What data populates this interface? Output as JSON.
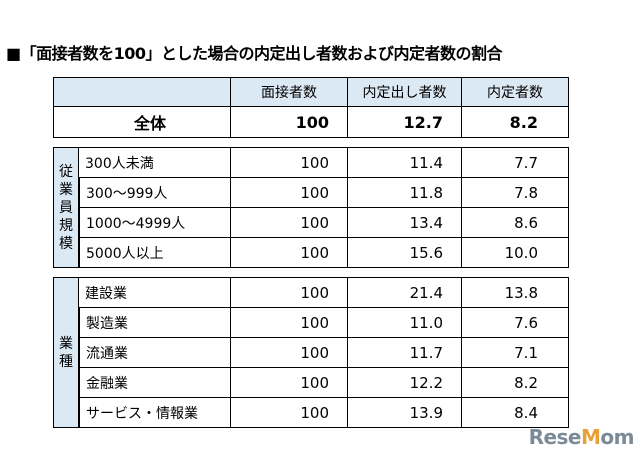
{
  "title": "■「面接者数を100」とした場合の内定出し者数および内定者数の割合",
  "headers": [
    "面接者数",
    "内定出し者数",
    "内定者数"
  ],
  "total": {
    "label": "全体",
    "values": [
      "100",
      "12.7",
      "8.2"
    ]
  },
  "groups": [
    {
      "label_chars": [
        "従",
        "業",
        "員",
        "規",
        "模"
      ],
      "rows": [
        {
          "label": "300人未満",
          "values": [
            "100",
            "11.4",
            "7.7"
          ]
        },
        {
          "label": "300～999人",
          "values": [
            "100",
            "11.8",
            "7.8"
          ]
        },
        {
          "label": "1000～4999人",
          "values": [
            "100",
            "13.4",
            "8.6"
          ]
        },
        {
          "label": "5000人以上",
          "values": [
            "100",
            "15.6",
            "10.0"
          ]
        }
      ]
    },
    {
      "label_chars": [
        "業",
        "種"
      ],
      "rows": [
        {
          "label": "建設業",
          "values": [
            "100",
            "21.4",
            "13.8"
          ]
        },
        {
          "label": "製造業",
          "values": [
            "100",
            "11.0",
            "7.6"
          ]
        },
        {
          "label": "流通業",
          "values": [
            "100",
            "11.7",
            "7.1"
          ]
        },
        {
          "label": "金融業",
          "values": [
            "100",
            "12.2",
            "8.2"
          ]
        },
        {
          "label": "サービス・情報業",
          "values": [
            "100",
            "13.9",
            "8.4"
          ]
        }
      ]
    }
  ],
  "watermark": "ReseMom"
}
